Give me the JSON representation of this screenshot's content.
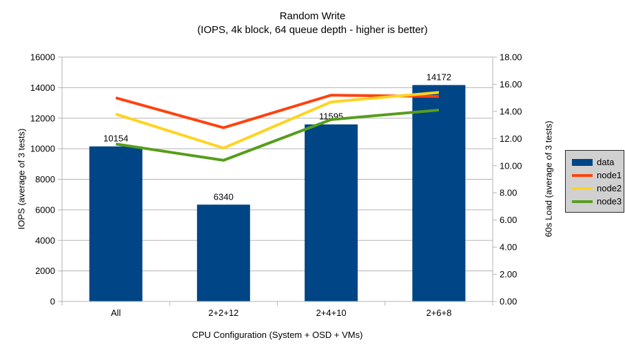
{
  "chart_data": {
    "type": "bar",
    "combo": "bar+line, dual y-axis",
    "title": "Random Write",
    "subtitle": "(IOPS, 4k block, 64 queue depth - higher is better)",
    "xlabel": "CPU Configuration (System + OSD + VMs)",
    "ylabel_left": "IOPS (average of 3 tests)",
    "ylabel_right": "60s Load (average of 3 tests)",
    "categories": [
      "All",
      "2+2+12",
      "2+4+10",
      "2+6+8"
    ],
    "bar_series": {
      "name": "data",
      "axis": "left",
      "color": "#004586",
      "values": [
        10154,
        6340,
        11595,
        14172
      ],
      "labels": [
        "10154",
        "6340",
        "11595",
        "14172"
      ]
    },
    "line_series": [
      {
        "name": "node1",
        "axis": "right",
        "color": "#FF420E",
        "values": [
          15.0,
          12.8,
          15.2,
          15.1
        ]
      },
      {
        "name": "node2",
        "axis": "right",
        "color": "#FFD320",
        "values": [
          13.8,
          11.3,
          14.7,
          15.4
        ]
      },
      {
        "name": "node3",
        "axis": "right",
        "color": "#579D1C",
        "values": [
          11.6,
          10.4,
          13.4,
          14.1
        ]
      }
    ],
    "y_left_axis": {
      "min": 0,
      "max": 16000,
      "step": 2000
    },
    "y_right_axis": {
      "min": 0,
      "max": 18,
      "step": 2,
      "decimals": 2
    },
    "grid": "horizontal-only",
    "legend_position": "right",
    "colors": {
      "gridline": "#b3b3b3",
      "axis_line": "#b3b3b3",
      "text": "#000000",
      "legend_background": "#d0d0d0",
      "legend_border": "#262626",
      "plot_background": "#ffffff"
    }
  }
}
